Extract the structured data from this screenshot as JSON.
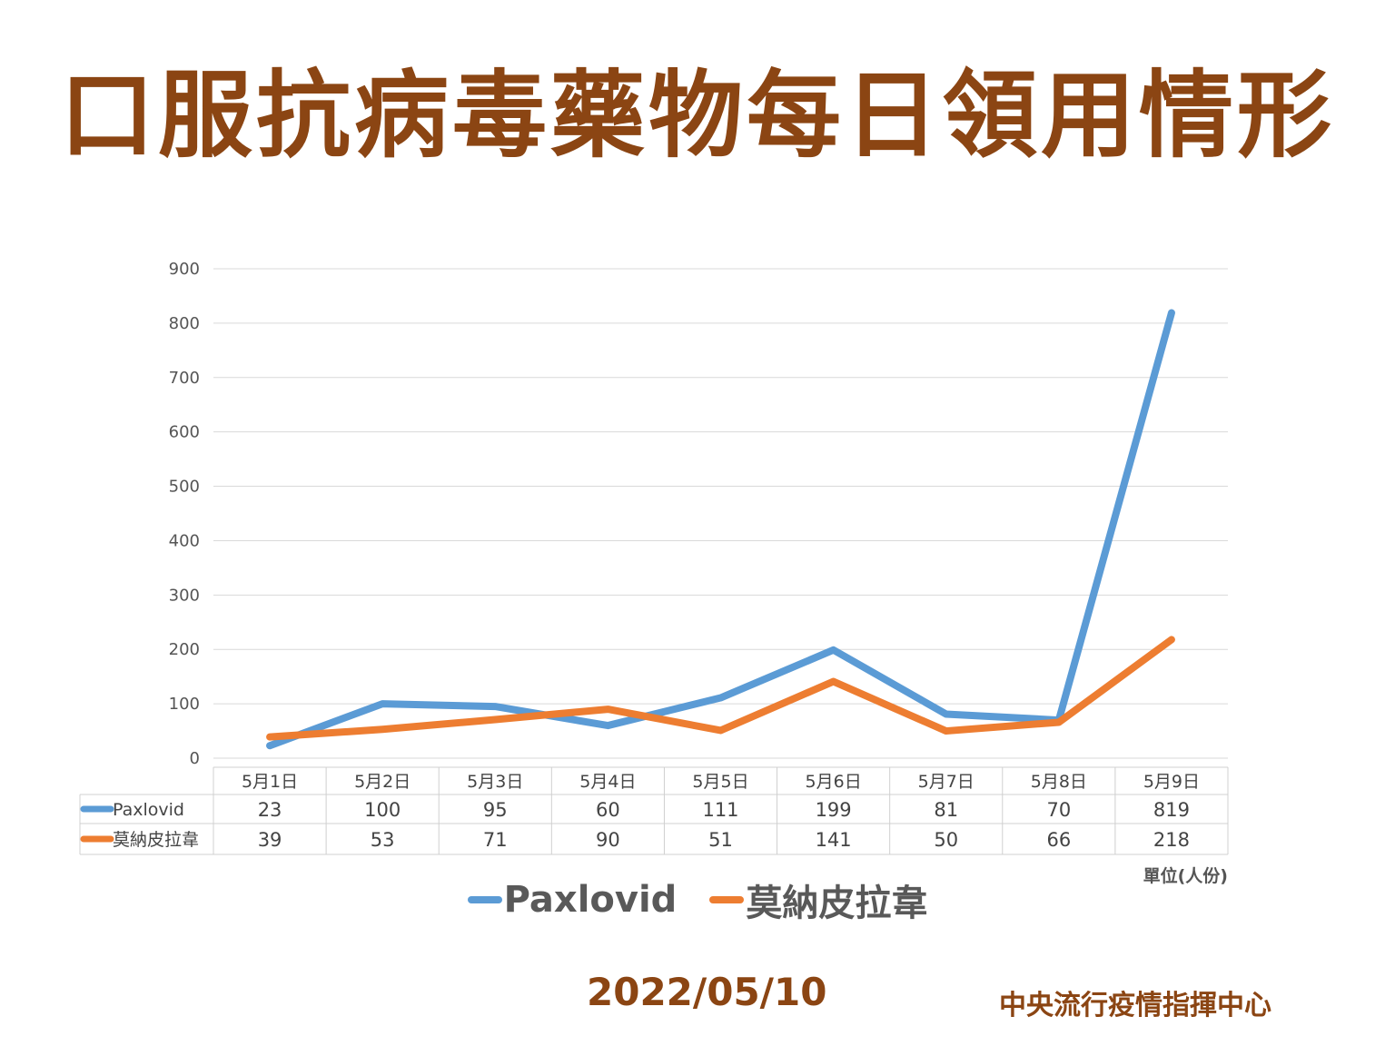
{
  "title": "口服抗病毒藥物每日領用情形",
  "unit_label": "單位(人份)",
  "date": "2022/05/10",
  "organization": "中央流行疫情指揮中心",
  "legend": [
    {
      "name": "Paxlovid",
      "color": "#5B9BD5"
    },
    {
      "name": "莫納皮拉韋",
      "color": "#ED7D31"
    }
  ],
  "chart_data": {
    "type": "line",
    "categories": [
      "5月1日",
      "5月2日",
      "5月3日",
      "5月4日",
      "5月5日",
      "5月6日",
      "5月7日",
      "5月8日",
      "5月9日"
    ],
    "series": [
      {
        "name": "Paxlovid",
        "color": "#5B9BD5",
        "values": [
          23,
          100,
          95,
          60,
          111,
          199,
          81,
          70,
          819
        ]
      },
      {
        "name": "莫納皮拉韋",
        "color": "#ED7D31",
        "values": [
          39,
          53,
          71,
          90,
          51,
          141,
          50,
          66,
          218
        ]
      }
    ],
    "ylim": [
      0,
      900
    ],
    "yticks": [
      0,
      100,
      200,
      300,
      400,
      500,
      600,
      700,
      800,
      900
    ],
    "grid": true,
    "data_table": true,
    "legend_position": "bottom"
  }
}
